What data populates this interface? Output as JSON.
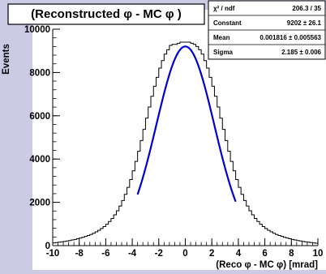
{
  "chart_data": {
    "type": "histogram",
    "title": "(Reconstructed φ - MC φ )",
    "xlabel": "(Reco φ - MC φ) [mrad]",
    "ylabel": "Events",
    "xlim": [
      -10,
      10
    ],
    "ylim": [
      0,
      10000
    ],
    "x_ticks": [
      -10,
      -8,
      -6,
      -4,
      -2,
      0,
      2,
      4,
      6,
      8,
      10
    ],
    "y_ticks": [
      0,
      2000,
      4000,
      6000,
      8000,
      10000
    ],
    "x_tick_labels": [
      "-10",
      "-8",
      "-6",
      "-4",
      "-2",
      "0",
      "2",
      "4",
      "6",
      "8",
      "10"
    ],
    "y_tick_labels": [
      "0",
      "2000",
      "4000",
      "6000",
      "8000",
      "10000"
    ],
    "bin_width": 0.2,
    "histogram": {
      "x": [
        -9.9,
        -9.7,
        -9.5,
        -9.3,
        -9.1,
        -8.9,
        -8.7,
        -8.5,
        -8.3,
        -8.1,
        -7.9,
        -7.7,
        -7.5,
        -7.3,
        -7.1,
        -6.9,
        -6.7,
        -6.5,
        -6.3,
        -6.1,
        -5.9,
        -5.7,
        -5.5,
        -5.3,
        -5.1,
        -4.9,
        -4.7,
        -4.5,
        -4.3,
        -4.1,
        -3.9,
        -3.7,
        -3.5,
        -3.3,
        -3.1,
        -2.9,
        -2.7,
        -2.5,
        -2.3,
        -2.1,
        -1.9,
        -1.7,
        -1.5,
        -1.3,
        -1.1,
        -0.9,
        -0.7,
        -0.5,
        -0.3,
        -0.1,
        0.1,
        0.3,
        0.5,
        0.7,
        0.9,
        1.1,
        1.3,
        1.5,
        1.7,
        1.9,
        2.1,
        2.3,
        2.5,
        2.7,
        2.9,
        3.1,
        3.3,
        3.5,
        3.7,
        3.9,
        4.1,
        4.3,
        4.5,
        4.7,
        4.9,
        5.1,
        5.3,
        5.5,
        5.7,
        5.9,
        6.1,
        6.3,
        6.5,
        6.7,
        6.9,
        7.1,
        7.3,
        7.5,
        7.7,
        7.9,
        8.1,
        8.3,
        8.5,
        8.7,
        8.9,
        9.1,
        9.3,
        9.5,
        9.7,
        9.9
      ],
      "values": [
        125,
        141,
        157,
        175,
        194,
        214,
        236,
        261,
        287,
        316,
        349,
        384,
        424,
        468,
        517,
        573,
        636,
        707,
        789,
        882,
        989,
        1113,
        1256,
        1421,
        1611,
        1831,
        2082,
        2369,
        2692,
        3053,
        3453,
        3890,
        4359,
        4855,
        5369,
        5890,
        6406,
        6902,
        7363,
        7776,
        8200,
        8550,
        8850,
        9050,
        9250,
        9300,
        9300,
        9350,
        9400,
        9400,
        9400,
        9400,
        9350,
        9300,
        9200,
        9050,
        8850,
        8550,
        8200,
        7776,
        7363,
        6902,
        6406,
        5890,
        5369,
        4855,
        4359,
        3890,
        3453,
        3053,
        2692,
        2369,
        2082,
        1831,
        1611,
        1421,
        1256,
        1113,
        989,
        882,
        789,
        707,
        636,
        573,
        517,
        468,
        424,
        384,
        349,
        316,
        287,
        261,
        236,
        214,
        194,
        175,
        157,
        141,
        126,
        114
      ]
    },
    "fit": {
      "type": "gaussian",
      "range": [
        -3.6,
        3.8
      ],
      "constant": 9202,
      "mean": 0.001816,
      "sigma": 2.185,
      "color": "#0000cc"
    },
    "stats_box": {
      "rows": [
        {
          "label": "χ² / ndf",
          "value": "206.3 / 35"
        },
        {
          "label": "Constant",
          "value": "9202 ± 26.1"
        },
        {
          "label": "Mean",
          "value": "0.001816 ± 0.005563"
        },
        {
          "label": "Sigma",
          "value": "2.185 ± 0.006"
        }
      ]
    },
    "colors": {
      "background": "#cbcbe6",
      "frame": "#ffffff",
      "histogram": "#000000",
      "fit": "#0000cc"
    },
    "grid": false
  }
}
